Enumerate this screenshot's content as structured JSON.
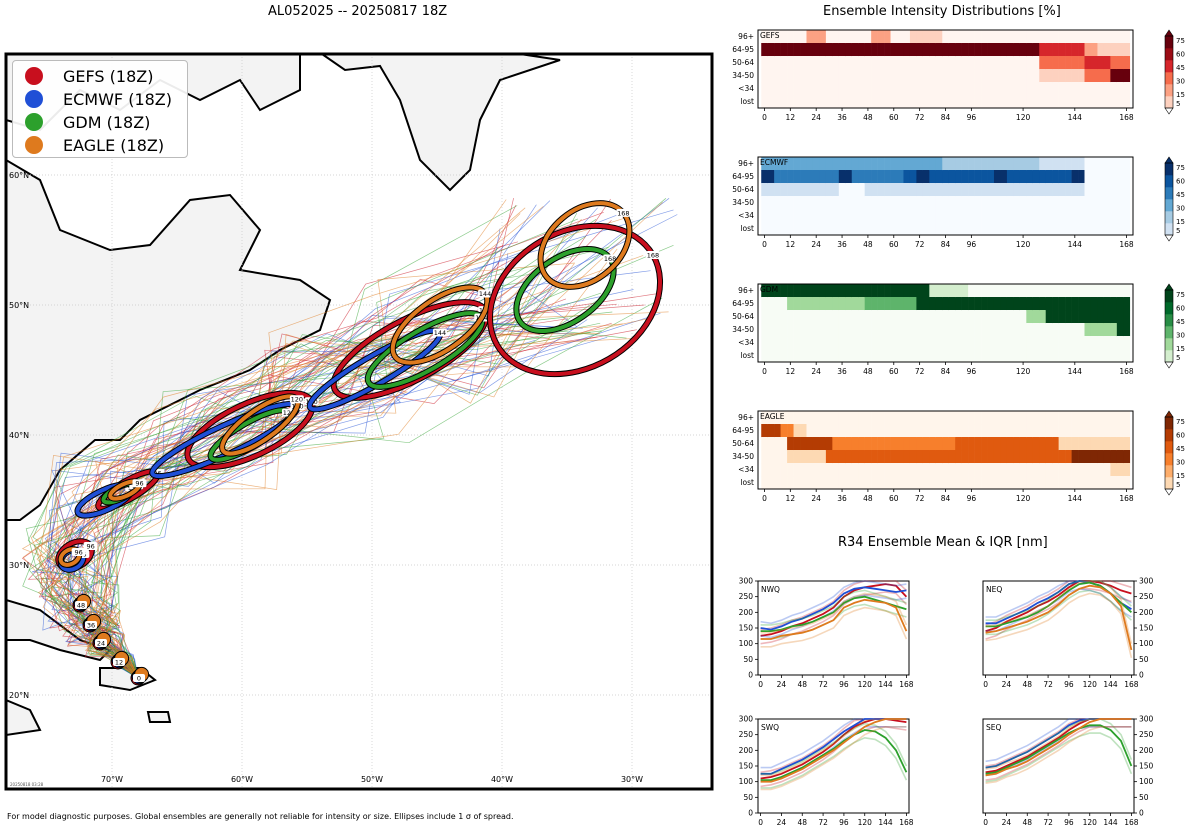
{
  "page": {
    "main_title": "AL052025 -- 20250817 18Z",
    "footer": "For model diagnostic purposes. Global ensembles are generally not reliable for intensity or size. Ellipses include 1 σ of spread.",
    "map_stamp": "20250818 03:28",
    "intensity_title": "Ensemble Intensity Distributions [%]",
    "r34_title": "R34 Ensemble Mean & IQR [nm]"
  },
  "colors": {
    "GEFS": "#c80f1e",
    "ECMWF": "#1f4fd6",
    "GDM": "#2ca02c",
    "EAGLE": "#de7a1e"
  },
  "map": {
    "legend": [
      {
        "name": "GEFS (18Z)",
        "color": "#c80f1e"
      },
      {
        "name": "ECMWF (18Z)",
        "color": "#1f4fd6"
      },
      {
        "name": "GDM (18Z)",
        "color": "#2ca02c"
      },
      {
        "name": "EAGLE (18Z)",
        "color": "#de7a1e"
      }
    ],
    "lat_labels": [
      "60°N",
      "50°N",
      "40°N",
      "30°N",
      "20°N"
    ],
    "lon_labels": [
      "70°W",
      "60°W",
      "50°W",
      "40°W",
      "30°W"
    ],
    "forecast_hour_labels": [
      "0",
      "12",
      "24",
      "36",
      "48",
      "72",
      "96",
      "120",
      "144",
      "168"
    ]
  },
  "chart_data": [
    {
      "type": "heatmap",
      "name": "GEFS",
      "cmap": "reds",
      "xlabels": [
        "0",
        "12",
        "24",
        "36",
        "48",
        "60",
        "72",
        "84",
        "96",
        "120",
        "144",
        "168"
      ],
      "x_ticks_hours": [
        0,
        12,
        24,
        36,
        48,
        60,
        72,
        84,
        96,
        120,
        144,
        168
      ],
      "xlim": [
        -3,
        171
      ],
      "ylabels": [
        "96+",
        "64-95",
        "50-64",
        "34-50",
        "<34",
        "lost"
      ],
      "colorbar_ticks": [
        5,
        15,
        30,
        45,
        60,
        75
      ],
      "label": "GEFS"
    },
    {
      "type": "heatmap",
      "name": "ECMWF",
      "cmap": "blues",
      "xlabels": [
        "0",
        "12",
        "24",
        "36",
        "48",
        "60",
        "72",
        "84",
        "96",
        "120",
        "144",
        "168"
      ],
      "x_ticks_hours": [
        0,
        12,
        24,
        36,
        48,
        60,
        72,
        84,
        96,
        120,
        144,
        168
      ],
      "xlim": [
        -3,
        171
      ],
      "ylabels": [
        "96+",
        "64-95",
        "50-64",
        "34-50",
        "<34",
        "lost"
      ],
      "colorbar_ticks": [
        5,
        15,
        30,
        45,
        60,
        75
      ],
      "label": "ECMWF"
    },
    {
      "type": "heatmap",
      "name": "GDM",
      "cmap": "greens",
      "xlabels": [
        "0",
        "12",
        "24",
        "36",
        "48",
        "60",
        "72",
        "84",
        "96",
        "120",
        "144",
        "168"
      ],
      "x_ticks_hours": [
        0,
        12,
        24,
        36,
        48,
        60,
        72,
        84,
        96,
        120,
        144,
        168
      ],
      "xlim": [
        -3,
        171
      ],
      "ylabels": [
        "96+",
        "64-95",
        "50-64",
        "34-50",
        "<34",
        "lost"
      ],
      "colorbar_ticks": [
        5,
        15,
        30,
        45,
        60,
        75
      ],
      "label": "GDM"
    },
    {
      "type": "heatmap",
      "name": "EAGLE",
      "cmap": "oranges",
      "xlabels": [
        "0",
        "12",
        "24",
        "36",
        "48",
        "60",
        "72",
        "84",
        "96",
        "120",
        "144",
        "168"
      ],
      "x_ticks_hours": [
        0,
        12,
        24,
        36,
        48,
        60,
        72,
        84,
        96,
        120,
        144,
        168
      ],
      "xlim": [
        -3,
        171
      ],
      "ylabels": [
        "96+",
        "64-95",
        "50-64",
        "34-50",
        "<34",
        "lost"
      ],
      "colorbar_ticks": [
        5,
        15,
        30,
        45,
        60,
        75
      ],
      "label": "EAGLE"
    },
    {
      "type": "line",
      "name": "NWQ",
      "label": "NWQ",
      "x": [
        0,
        12,
        24,
        36,
        48,
        60,
        72,
        84,
        96,
        108,
        120,
        132,
        144,
        156,
        168
      ],
      "xlabels": [
        "0",
        "24",
        "48",
        "72",
        "96",
        "120",
        "144",
        "168"
      ],
      "ylim": [
        0,
        300
      ],
      "yticks": [
        0,
        50,
        100,
        150,
        200,
        250,
        300
      ],
      "series": [
        {
          "name": "GEFS",
          "values": [
            125,
            130,
            140,
            155,
            165,
            180,
            195,
            215,
            250,
            270,
            280,
            285,
            290,
            285,
            250
          ]
        },
        {
          "name": "ECMWF",
          "values": [
            150,
            145,
            155,
            170,
            180,
            195,
            210,
            230,
            260,
            275,
            280,
            275,
            270,
            265,
            270
          ]
        },
        {
          "name": "GDM",
          "values": [
            140,
            140,
            145,
            155,
            160,
            170,
            185,
            200,
            230,
            245,
            250,
            240,
            230,
            220,
            210
          ]
        },
        {
          "name": "EAGLE",
          "values": [
            115,
            115,
            125,
            130,
            135,
            145,
            160,
            175,
            215,
            230,
            240,
            235,
            230,
            215,
            140
          ]
        }
      ]
    },
    {
      "type": "line",
      "name": "NEQ",
      "label": "NEQ",
      "x": [
        0,
        12,
        24,
        36,
        48,
        60,
        72,
        84,
        96,
        108,
        120,
        132,
        144,
        156,
        168
      ],
      "xlabels": [
        "0",
        "24",
        "48",
        "72",
        "96",
        "120",
        "144",
        "168"
      ],
      "ylim": [
        0,
        300
      ],
      "yticks": [
        0,
        50,
        100,
        150,
        200,
        250,
        300
      ],
      "series": [
        {
          "name": "GEFS",
          "values": [
            140,
            150,
            170,
            185,
            200,
            220,
            235,
            255,
            280,
            300,
            300,
            295,
            285,
            270,
            260
          ]
        },
        {
          "name": "ECMWF",
          "values": [
            165,
            165,
            180,
            195,
            210,
            230,
            245,
            265,
            290,
            300,
            295,
            285,
            260,
            230,
            210
          ]
        },
        {
          "name": "GDM",
          "values": [
            155,
            155,
            165,
            175,
            185,
            200,
            220,
            245,
            270,
            290,
            295,
            285,
            260,
            230,
            200
          ]
        },
        {
          "name": "EAGLE",
          "values": [
            135,
            140,
            150,
            160,
            170,
            185,
            200,
            225,
            255,
            275,
            285,
            280,
            260,
            220,
            80
          ]
        }
      ]
    },
    {
      "type": "line",
      "name": "SWQ",
      "label": "SWQ",
      "x": [
        0,
        12,
        24,
        36,
        48,
        60,
        72,
        84,
        96,
        108,
        120,
        132,
        144,
        156,
        168
      ],
      "xlabels": [
        "0",
        "24",
        "48",
        "72",
        "96",
        "120",
        "144",
        "168"
      ],
      "ylim": [
        0,
        300
      ],
      "yticks": [
        0,
        50,
        100,
        150,
        200,
        250,
        300
      ],
      "series": [
        {
          "name": "GEFS",
          "values": [
            110,
            115,
            125,
            140,
            155,
            175,
            195,
            220,
            250,
            275,
            290,
            300,
            300,
            295,
            290
          ]
        },
        {
          "name": "ECMWF",
          "values": [
            125,
            125,
            140,
            155,
            170,
            190,
            210,
            235,
            260,
            280,
            300,
            300,
            300,
            300,
            300
          ]
        },
        {
          "name": "GDM",
          "values": [
            105,
            105,
            115,
            130,
            145,
            165,
            185,
            205,
            230,
            250,
            265,
            260,
            240,
            200,
            130
          ]
        },
        {
          "name": "EAGLE",
          "values": [
            100,
            100,
            110,
            125,
            140,
            160,
            180,
            200,
            225,
            250,
            275,
            290,
            300,
            300,
            300
          ]
        }
      ]
    },
    {
      "type": "line",
      "name": "SEQ",
      "label": "SEQ",
      "x": [
        0,
        12,
        24,
        36,
        48,
        60,
        72,
        84,
        96,
        108,
        120,
        132,
        144,
        156,
        168
      ],
      "xlabels": [
        "0",
        "24",
        "48",
        "72",
        "96",
        "120",
        "144",
        "168"
      ],
      "ylim": [
        0,
        300
      ],
      "yticks": [
        0,
        50,
        100,
        150,
        200,
        250,
        300
      ],
      "series": [
        {
          "name": "GEFS",
          "values": [
            130,
            135,
            150,
            165,
            180,
            200,
            220,
            240,
            265,
            285,
            300,
            300,
            300,
            300,
            300
          ]
        },
        {
          "name": "ECMWF",
          "values": [
            145,
            150,
            165,
            180,
            195,
            215,
            235,
            255,
            280,
            295,
            300,
            300,
            300,
            300,
            300
          ]
        },
        {
          "name": "GDM",
          "values": [
            125,
            130,
            145,
            160,
            175,
            195,
            215,
            235,
            255,
            270,
            280,
            280,
            265,
            230,
            150
          ]
        },
        {
          "name": "EAGLE",
          "values": [
            120,
            125,
            140,
            150,
            165,
            185,
            205,
            225,
            250,
            270,
            290,
            300,
            300,
            300,
            300
          ]
        }
      ]
    }
  ]
}
